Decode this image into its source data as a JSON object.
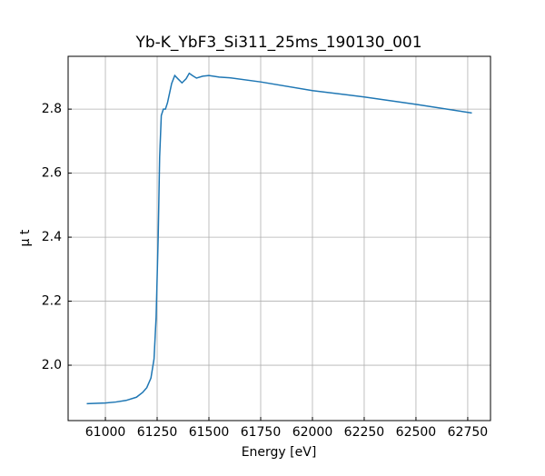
{
  "chart_data": {
    "type": "line",
    "title": "Yb-K_YbF3_Si311_25ms_190130_001",
    "xlabel": "Energy [eV]",
    "ylabel": "μ t",
    "x": [
      60910,
      61000,
      61050,
      61100,
      61150,
      61180,
      61200,
      61220,
      61235,
      61245,
      61255,
      61262,
      61270,
      61280,
      61290,
      61300,
      61320,
      61335,
      61350,
      61370,
      61390,
      61405,
      61420,
      61440,
      61470,
      61500,
      61550,
      61600,
      61750,
      62000,
      62250,
      62500,
      62770
    ],
    "series": [
      {
        "color": "#1f77b4",
        "values": [
          1.88,
          1.882,
          1.885,
          1.89,
          1.9,
          1.915,
          1.93,
          1.96,
          2.02,
          2.15,
          2.4,
          2.65,
          2.78,
          2.8,
          2.8,
          2.82,
          2.88,
          2.905,
          2.895,
          2.882,
          2.895,
          2.912,
          2.905,
          2.897,
          2.903,
          2.905,
          2.9,
          2.898,
          2.885,
          2.858,
          2.838,
          2.815,
          2.788
        ]
      }
    ],
    "xlim": [
      60820,
      62860
    ],
    "ylim": [
      1.827,
      2.965
    ],
    "xticks": [
      61000,
      61250,
      61500,
      61750,
      62000,
      62250,
      62500,
      62750
    ],
    "yticks": [
      {
        "value": 2,
        "label": "2.0"
      },
      2.2,
      2.4,
      2.6,
      2.8
    ],
    "grid": true
  }
}
